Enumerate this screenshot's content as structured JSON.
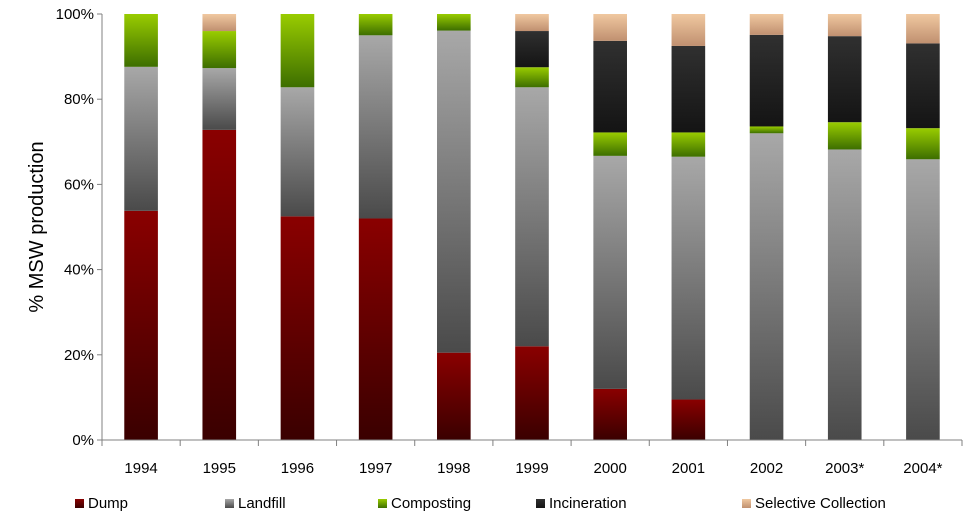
{
  "chart_data": {
    "type": "bar",
    "stacked": true,
    "percent": true,
    "title": "",
    "xlabel": "",
    "ylabel": "% MSW production",
    "ylim": [
      0,
      100
    ],
    "yticks": [
      "0%",
      "20%",
      "40%",
      "60%",
      "80%",
      "100%"
    ],
    "categories": [
      "1994",
      "1995",
      "1996",
      "1997",
      "1998",
      "1999",
      "2000",
      "2001",
      "2002",
      "2003*",
      "2004*"
    ],
    "series": [
      {
        "name": "Dump",
        "color": "#800000",
        "values": [
          53.8,
          72.8,
          52.5,
          52.0,
          20.5,
          22.0,
          12.0,
          9.5,
          0,
          0,
          0
        ]
      },
      {
        "name": "Landfill",
        "color": "#808080",
        "values": [
          33.8,
          14.5,
          30.3,
          43.0,
          75.6,
          60.8,
          54.7,
          57.0,
          72.0,
          68.2,
          65.9
        ]
      },
      {
        "name": "Composting",
        "color": "#66aa00",
        "values": [
          12.4,
          8.7,
          17.2,
          5.0,
          3.9,
          4.7,
          5.5,
          5.7,
          1.6,
          6.4,
          7.3
        ]
      },
      {
        "name": "Incineration",
        "color": "#1a1a1a",
        "values": [
          0,
          0,
          0,
          0,
          0,
          8.5,
          21.5,
          20.3,
          21.5,
          20.2,
          19.9
        ]
      },
      {
        "name": "Selective Collection",
        "color": "#e0a878",
        "values": [
          0,
          4.0,
          0,
          0,
          0,
          4.0,
          6.3,
          7.5,
          4.9,
          5.2,
          6.9
        ]
      }
    ],
    "grid": false,
    "legend_position": "bottom"
  }
}
